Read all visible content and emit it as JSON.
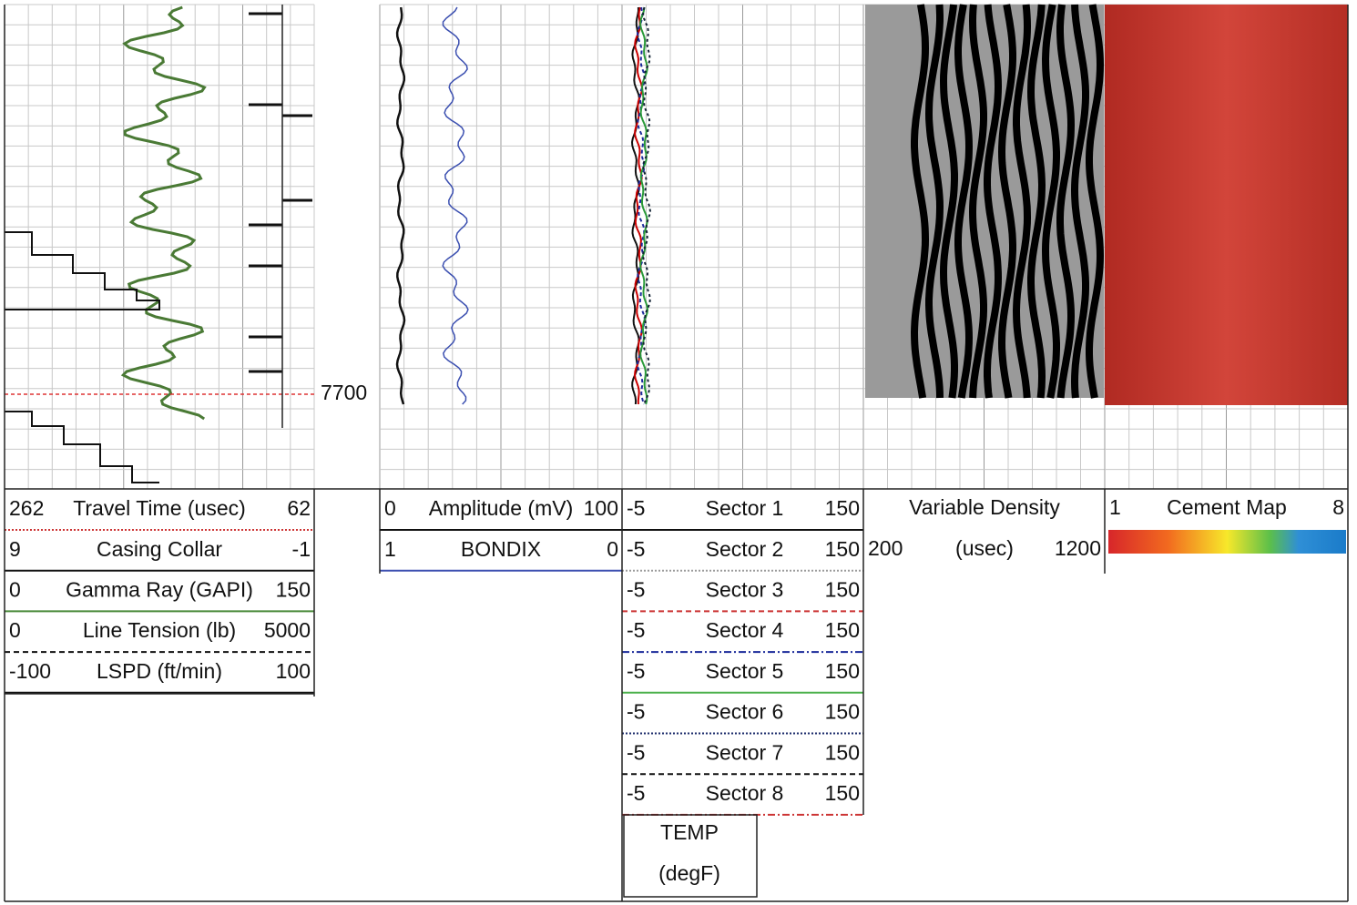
{
  "depth_label": "7700",
  "tracks": [
    {
      "curves": [
        {
          "left": "262",
          "name": "Travel Time (usec)",
          "right": "62"
        },
        {
          "left": "9",
          "name": "Casing Collar",
          "right": "-1"
        },
        {
          "left": "0",
          "name": "Gamma Ray (GAPI)",
          "right": "150"
        },
        {
          "left": "0",
          "name": "Line Tension (lb)",
          "right": "5000"
        },
        {
          "left": "-100",
          "name": "LSPD (ft/min)",
          "right": "100"
        }
      ]
    },
    {
      "curves": [
        {
          "left": "0",
          "name": "Amplitude (mV)",
          "right": "100"
        },
        {
          "left": "1",
          "name": "BONDIX",
          "right": "0"
        }
      ]
    },
    {
      "curves": [
        {
          "left": "-5",
          "name": "Sector 1",
          "right": "150"
        },
        {
          "left": "-5",
          "name": "Sector 2",
          "right": "150"
        },
        {
          "left": "-5",
          "name": "Sector 3",
          "right": "150"
        },
        {
          "left": "-5",
          "name": "Sector 4",
          "right": "150"
        },
        {
          "left": "-5",
          "name": "Sector 5",
          "right": "150"
        },
        {
          "left": "-5",
          "name": "Sector 6",
          "right": "150"
        },
        {
          "left": "-5",
          "name": "Sector 7",
          "right": "150"
        },
        {
          "left": "-5",
          "name": "Sector 8",
          "right": "150"
        }
      ],
      "extra": {
        "line1": "TEMP",
        "line2": "(degF)"
      }
    },
    {
      "title": "Variable Density",
      "left": "200",
      "unit": "(usec)",
      "right": "1200"
    },
    {
      "left": "1",
      "title": "Cement Map",
      "right": "8"
    }
  ]
}
